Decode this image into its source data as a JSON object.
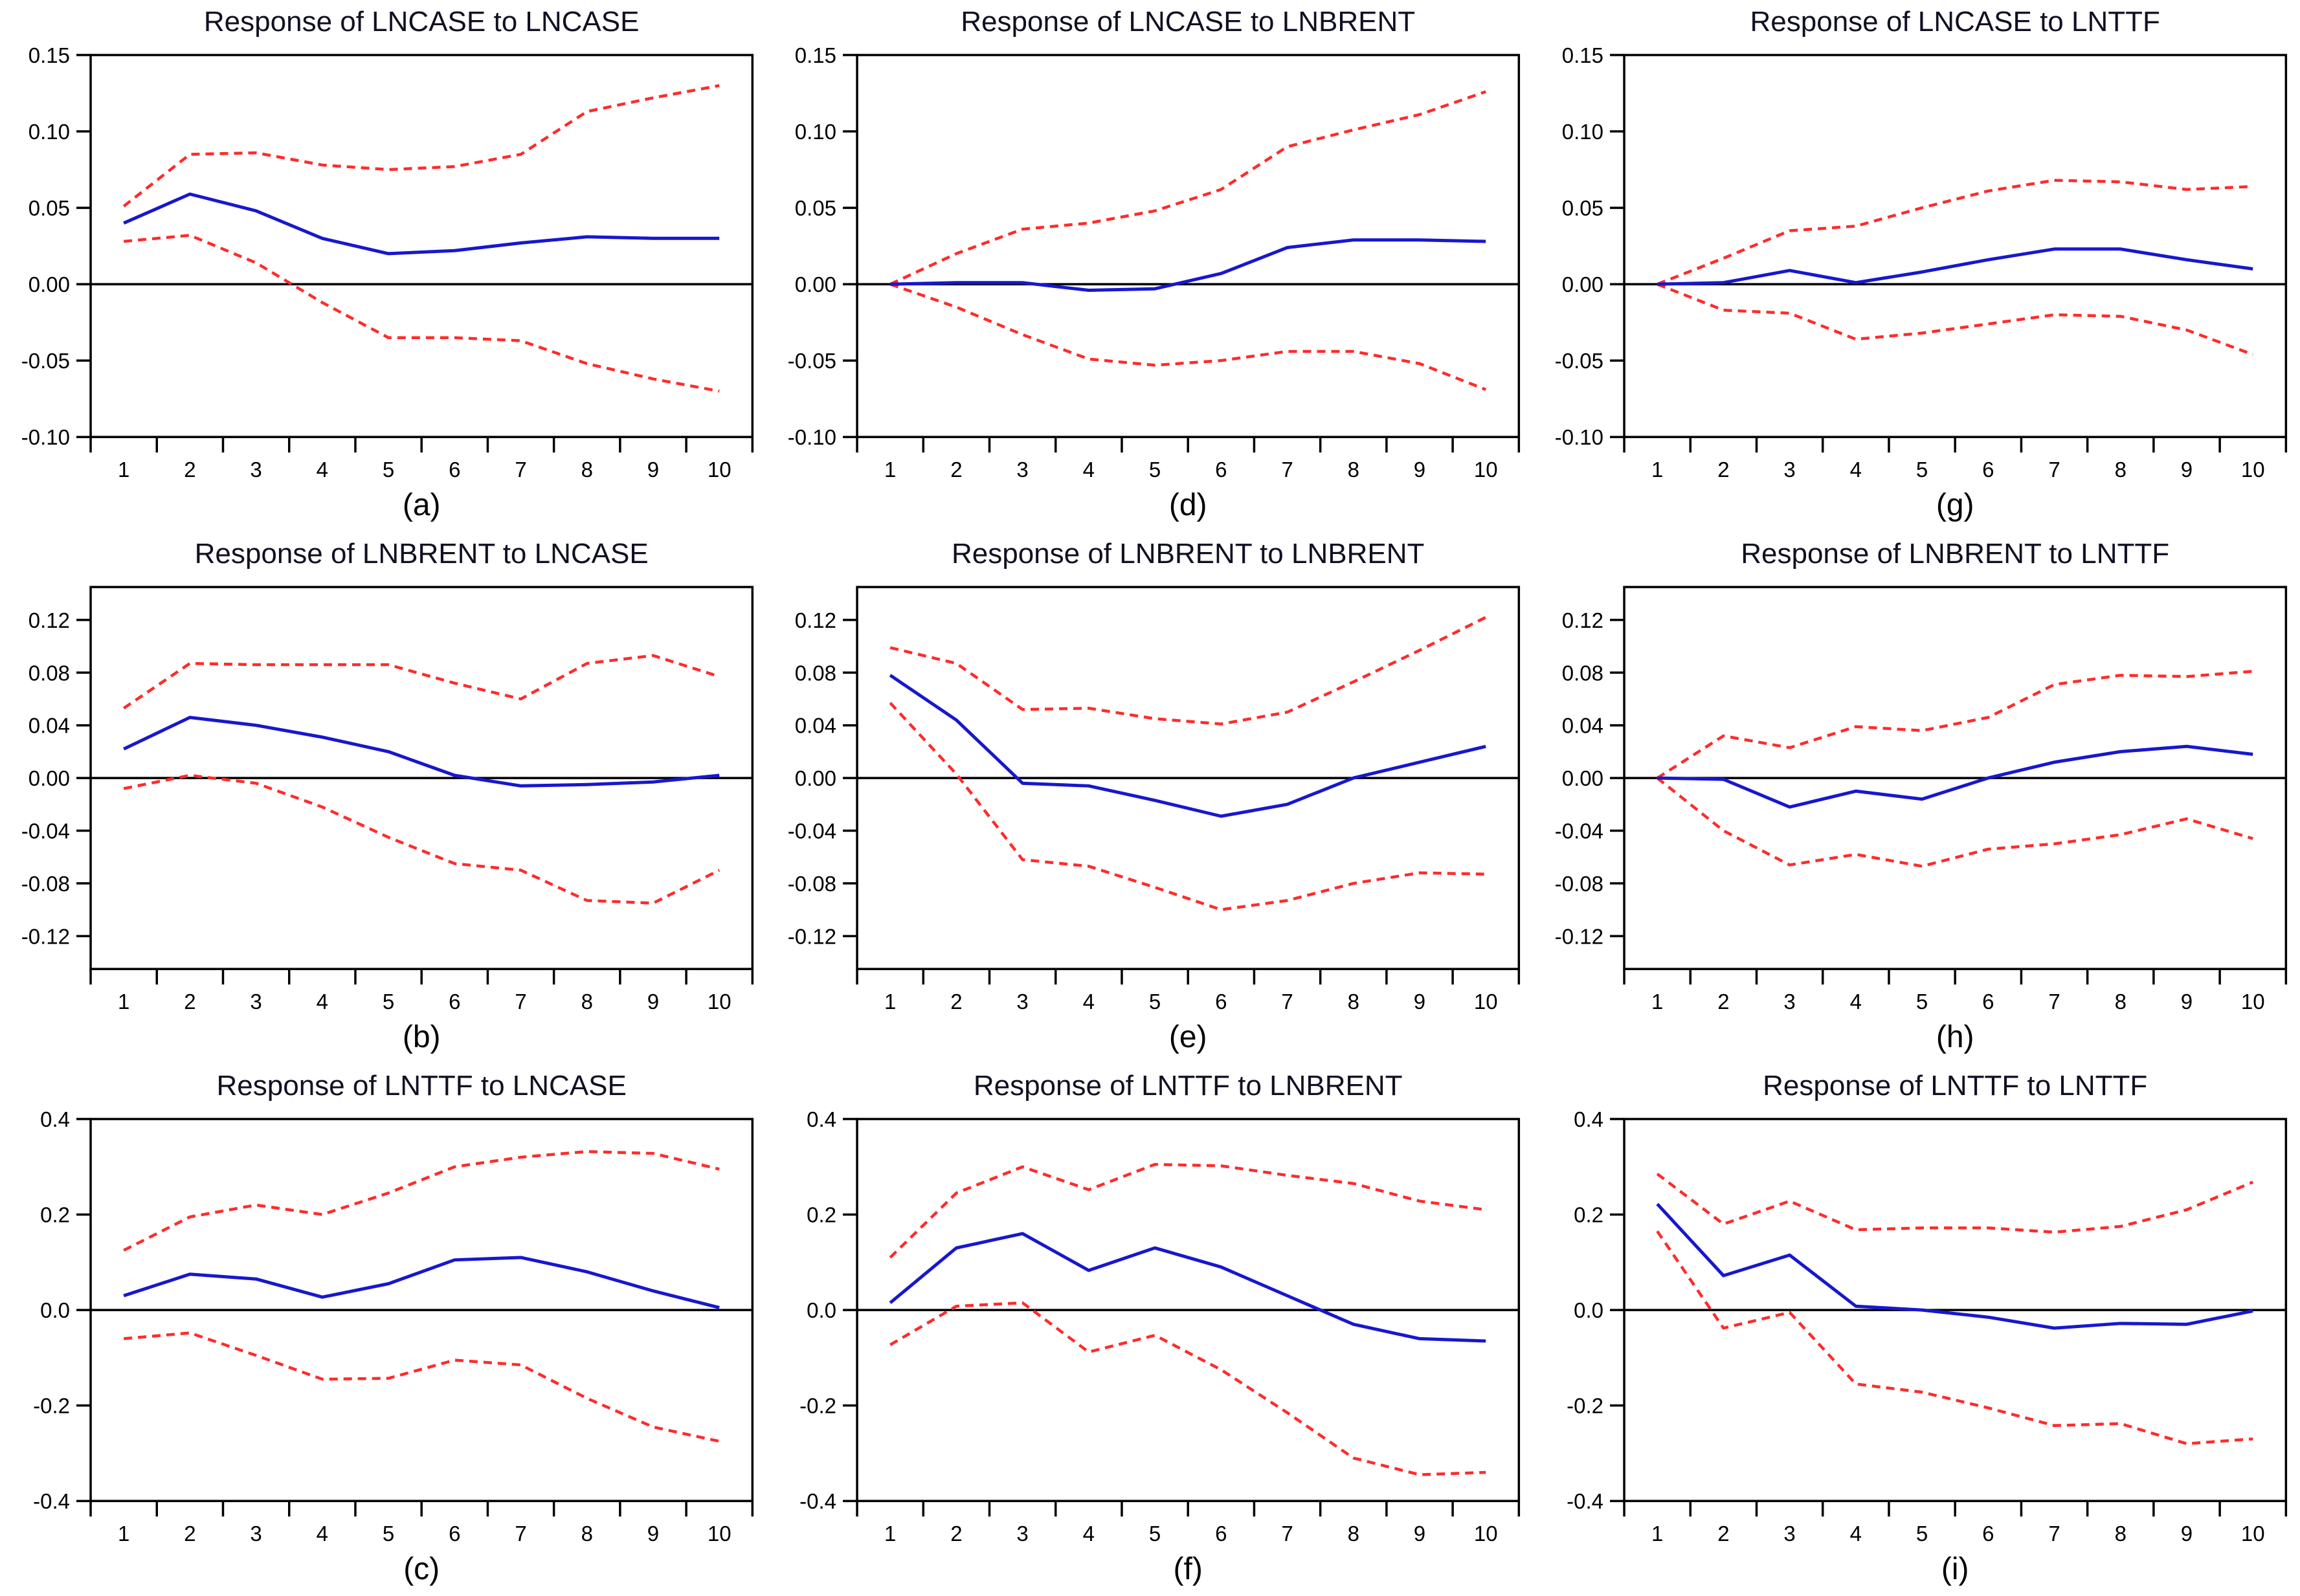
{
  "figure": {
    "background": "#ffffff",
    "colors": {
      "response": "#1717cf",
      "confidence_band": "#ff2b2b",
      "axis": "#000000",
      "title_text": "#101022",
      "tick_text": "#000000"
    },
    "x_tick_labels": [
      "1",
      "2",
      "3",
      "4",
      "5",
      "6",
      "7",
      "8",
      "9",
      "10"
    ]
  },
  "chart_data": [
    {
      "type": "line",
      "panel_label": "(a)",
      "title": "Response of LNCASE to LNCASE",
      "x": [
        1,
        2,
        3,
        4,
        5,
        6,
        7,
        8,
        9,
        10
      ],
      "ylim": [
        -0.1,
        0.15
      ],
      "y_ticks": [
        0.15,
        0.1,
        0.05,
        0.0,
        -0.05,
        -0.1
      ],
      "y_tick_labels": [
        "0.15",
        "0.10",
        "0.05",
        "0.00",
        "-0.05",
        "-0.10"
      ],
      "series": [
        {
          "name": "response",
          "style": "solid",
          "color_key": "response",
          "values": [
            0.04,
            0.059,
            0.048,
            0.03,
            0.02,
            0.022,
            0.027,
            0.031,
            0.03,
            0.03
          ]
        },
        {
          "name": "upper-confidence-band",
          "style": "dashed",
          "color_key": "confidence_band",
          "values": [
            0.051,
            0.085,
            0.086,
            0.078,
            0.075,
            0.077,
            0.085,
            0.113,
            0.122,
            0.13
          ]
        },
        {
          "name": "lower-confidence-band",
          "style": "dashed",
          "color_key": "confidence_band",
          "values": [
            0.028,
            0.032,
            0.014,
            -0.012,
            -0.035,
            -0.035,
            -0.037,
            -0.052,
            -0.062,
            -0.07
          ]
        }
      ]
    },
    {
      "type": "line",
      "panel_label": "(d)",
      "title": "Response of LNCASE to LNBRENT",
      "x": [
        1,
        2,
        3,
        4,
        5,
        6,
        7,
        8,
        9,
        10
      ],
      "ylim": [
        -0.1,
        0.15
      ],
      "y_ticks": [
        0.15,
        0.1,
        0.05,
        0.0,
        -0.05,
        -0.1
      ],
      "y_tick_labels": [
        "0.15",
        "0.10",
        "0.05",
        "0.00",
        "-0.05",
        "-0.10"
      ],
      "series": [
        {
          "name": "response",
          "style": "solid",
          "color_key": "response",
          "values": [
            0.0,
            0.001,
            0.001,
            -0.004,
            -0.003,
            0.007,
            0.024,
            0.029,
            0.029,
            0.028
          ]
        },
        {
          "name": "upper-confidence-band",
          "style": "dashed",
          "color_key": "confidence_band",
          "values": [
            0.0,
            0.02,
            0.036,
            0.04,
            0.048,
            0.062,
            0.09,
            0.101,
            0.111,
            0.126
          ]
        },
        {
          "name": "lower-confidence-band",
          "style": "dashed",
          "color_key": "confidence_band",
          "values": [
            0.0,
            -0.015,
            -0.033,
            -0.049,
            -0.053,
            -0.05,
            -0.044,
            -0.044,
            -0.052,
            -0.069
          ]
        }
      ]
    },
    {
      "type": "line",
      "panel_label": "(g)",
      "title": "Response of LNCASE to LNTTF",
      "x": [
        1,
        2,
        3,
        4,
        5,
        6,
        7,
        8,
        9,
        10
      ],
      "ylim": [
        -0.1,
        0.15
      ],
      "y_ticks": [
        0.15,
        0.1,
        0.05,
        0.0,
        -0.05,
        -0.1
      ],
      "y_tick_labels": [
        "0.15",
        "0.10",
        "0.05",
        "0.00",
        "-0.05",
        "-0.10"
      ],
      "series": [
        {
          "name": "response",
          "style": "solid",
          "color_key": "response",
          "values": [
            0.0,
            0.001,
            0.009,
            0.001,
            0.008,
            0.016,
            0.023,
            0.023,
            0.016,
            0.01
          ]
        },
        {
          "name": "upper-confidence-band",
          "style": "dashed",
          "color_key": "confidence_band",
          "values": [
            0.0,
            0.017,
            0.035,
            0.038,
            0.05,
            0.061,
            0.068,
            0.067,
            0.062,
            0.064
          ]
        },
        {
          "name": "lower-confidence-band",
          "style": "dashed",
          "color_key": "confidence_band",
          "values": [
            0.0,
            -0.017,
            -0.019,
            -0.036,
            -0.032,
            -0.026,
            -0.02,
            -0.021,
            -0.03,
            -0.046
          ]
        }
      ]
    },
    {
      "type": "line",
      "panel_label": "(b)",
      "title": "Response of LNBRENT to LNCASE",
      "x": [
        1,
        2,
        3,
        4,
        5,
        6,
        7,
        8,
        9,
        10
      ],
      "ylim": [
        -0.145,
        0.145
      ],
      "y_ticks": [
        0.12,
        0.08,
        0.04,
        0.0,
        -0.04,
        -0.08,
        -0.12
      ],
      "y_tick_labels": [
        "0.12",
        "0.08",
        "0.04",
        "0.00",
        "-0.04",
        "-0.08",
        "-0.12"
      ],
      "series": [
        {
          "name": "response",
          "style": "solid",
          "color_key": "response",
          "values": [
            0.022,
            0.046,
            0.04,
            0.031,
            0.02,
            0.002,
            -0.006,
            -0.005,
            -0.003,
            0.002
          ]
        },
        {
          "name": "upper-confidence-band",
          "style": "dashed",
          "color_key": "confidence_band",
          "values": [
            0.053,
            0.087,
            0.086,
            0.086,
            0.086,
            0.072,
            0.06,
            0.087,
            0.093,
            0.077
          ]
        },
        {
          "name": "lower-confidence-band",
          "style": "dashed",
          "color_key": "confidence_band",
          "values": [
            -0.008,
            0.002,
            -0.004,
            -0.022,
            -0.045,
            -0.065,
            -0.07,
            -0.093,
            -0.095,
            -0.07
          ]
        }
      ]
    },
    {
      "type": "line",
      "panel_label": "(e)",
      "title": "Response of LNBRENT to LNBRENT",
      "x": [
        1,
        2,
        3,
        4,
        5,
        6,
        7,
        8,
        9,
        10
      ],
      "ylim": [
        -0.145,
        0.145
      ],
      "y_ticks": [
        0.12,
        0.08,
        0.04,
        0.0,
        -0.04,
        -0.08,
        -0.12
      ],
      "y_tick_labels": [
        "0.12",
        "0.08",
        "0.04",
        "0.00",
        "-0.04",
        "-0.08",
        "-0.12"
      ],
      "series": [
        {
          "name": "response",
          "style": "solid",
          "color_key": "response",
          "values": [
            0.078,
            0.044,
            -0.004,
            -0.006,
            -0.017,
            -0.029,
            -0.02,
            0.0,
            0.012,
            0.024
          ]
        },
        {
          "name": "upper-confidence-band",
          "style": "dashed",
          "color_key": "confidence_band",
          "values": [
            0.099,
            0.087,
            0.052,
            0.053,
            0.045,
            0.041,
            0.05,
            0.073,
            0.097,
            0.122
          ]
        },
        {
          "name": "lower-confidence-band",
          "style": "dashed",
          "color_key": "confidence_band",
          "values": [
            0.057,
            0.003,
            -0.062,
            -0.067,
            -0.083,
            -0.1,
            -0.093,
            -0.08,
            -0.072,
            -0.073
          ]
        }
      ]
    },
    {
      "type": "line",
      "panel_label": "(h)",
      "title": "Response of LNBRENT to LNTTF",
      "x": [
        1,
        2,
        3,
        4,
        5,
        6,
        7,
        8,
        9,
        10
      ],
      "ylim": [
        -0.145,
        0.145
      ],
      "y_ticks": [
        0.12,
        0.08,
        0.04,
        0.0,
        -0.04,
        -0.08,
        -0.12
      ],
      "y_tick_labels": [
        "0.12",
        "0.08",
        "0.04",
        "0.00",
        "-0.04",
        "-0.08",
        "-0.12"
      ],
      "series": [
        {
          "name": "response",
          "style": "solid",
          "color_key": "response",
          "values": [
            0.0,
            -0.001,
            -0.022,
            -0.01,
            -0.016,
            0.0,
            0.012,
            0.02,
            0.024,
            0.018
          ]
        },
        {
          "name": "upper-confidence-band",
          "style": "dashed",
          "color_key": "confidence_band",
          "values": [
            0.0,
            0.032,
            0.023,
            0.039,
            0.036,
            0.046,
            0.071,
            0.078,
            0.077,
            0.081
          ]
        },
        {
          "name": "lower-confidence-band",
          "style": "dashed",
          "color_key": "confidence_band",
          "values": [
            0.0,
            -0.04,
            -0.066,
            -0.058,
            -0.067,
            -0.054,
            -0.05,
            -0.043,
            -0.031,
            -0.046
          ]
        }
      ]
    },
    {
      "type": "line",
      "panel_label": "(c)",
      "title": "Response of LNTTF to LNCASE",
      "x": [
        1,
        2,
        3,
        4,
        5,
        6,
        7,
        8,
        9,
        10
      ],
      "ylim": [
        -0.4,
        0.4
      ],
      "y_ticks": [
        0.4,
        0.2,
        0.0,
        -0.2,
        -0.4
      ],
      "y_tick_labels": [
        "0.4",
        "0.2",
        "0.0",
        "-0.2",
        "-0.4"
      ],
      "series": [
        {
          "name": "response",
          "style": "solid",
          "color_key": "response",
          "values": [
            0.03,
            0.075,
            0.065,
            0.027,
            0.055,
            0.105,
            0.11,
            0.08,
            0.04,
            0.005
          ]
        },
        {
          "name": "upper-confidence-band",
          "style": "dashed",
          "color_key": "confidence_band",
          "values": [
            0.125,
            0.195,
            0.22,
            0.2,
            0.245,
            0.3,
            0.32,
            0.332,
            0.328,
            0.295
          ]
        },
        {
          "name": "lower-confidence-band",
          "style": "dashed",
          "color_key": "confidence_band",
          "values": [
            -0.06,
            -0.048,
            -0.095,
            -0.145,
            -0.143,
            -0.105,
            -0.115,
            -0.185,
            -0.245,
            -0.275
          ]
        }
      ]
    },
    {
      "type": "line",
      "panel_label": "(f)",
      "title": "Response of LNTTF to LNBRENT",
      "x": [
        1,
        2,
        3,
        4,
        5,
        6,
        7,
        8,
        9,
        10
      ],
      "ylim": [
        -0.4,
        0.4
      ],
      "y_ticks": [
        0.4,
        0.2,
        0.0,
        -0.2,
        -0.4
      ],
      "y_tick_labels": [
        "0.4",
        "0.2",
        "0.0",
        "-0.2",
        "-0.4"
      ],
      "series": [
        {
          "name": "response",
          "style": "solid",
          "color_key": "response",
          "values": [
            0.015,
            0.13,
            0.16,
            0.083,
            0.13,
            0.09,
            0.03,
            -0.03,
            -0.06,
            -0.065
          ]
        },
        {
          "name": "upper-confidence-band",
          "style": "dashed",
          "color_key": "confidence_band",
          "values": [
            0.11,
            0.245,
            0.3,
            0.252,
            0.305,
            0.302,
            0.282,
            0.265,
            0.228,
            0.21
          ]
        },
        {
          "name": "lower-confidence-band",
          "style": "dashed",
          "color_key": "confidence_band",
          "values": [
            -0.073,
            0.008,
            0.015,
            -0.088,
            -0.053,
            -0.125,
            -0.215,
            -0.31,
            -0.345,
            -0.34
          ]
        }
      ]
    },
    {
      "type": "line",
      "panel_label": "(i)",
      "title": "Response of LNTTF to LNTTF",
      "x": [
        1,
        2,
        3,
        4,
        5,
        6,
        7,
        8,
        9,
        10
      ],
      "ylim": [
        -0.4,
        0.4
      ],
      "y_ticks": [
        0.4,
        0.2,
        0.0,
        -0.2,
        -0.4
      ],
      "y_tick_labels": [
        "0.4",
        "0.2",
        "0.0",
        "-0.2",
        "-0.4"
      ],
      "series": [
        {
          "name": "response",
          "style": "solid",
          "color_key": "response",
          "values": [
            0.222,
            0.072,
            0.115,
            0.008,
            0.0,
            -0.015,
            -0.038,
            -0.028,
            -0.03,
            -0.002
          ]
        },
        {
          "name": "upper-confidence-band",
          "style": "dashed",
          "color_key": "confidence_band",
          "values": [
            0.285,
            0.18,
            0.228,
            0.168,
            0.172,
            0.172,
            0.163,
            0.175,
            0.21,
            0.268
          ]
        },
        {
          "name": "lower-confidence-band",
          "style": "dashed",
          "color_key": "confidence_band",
          "values": [
            0.165,
            -0.038,
            -0.005,
            -0.155,
            -0.172,
            -0.205,
            -0.242,
            -0.238,
            -0.28,
            -0.27
          ]
        }
      ]
    }
  ]
}
